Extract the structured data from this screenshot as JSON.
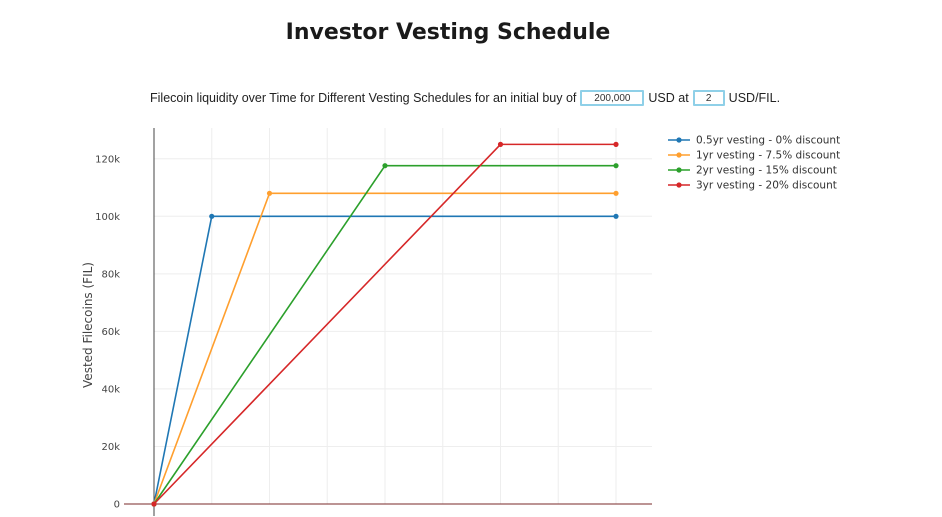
{
  "page": {
    "title": "Investor Vesting Schedule"
  },
  "controls": {
    "prefix_text": "Filecoin liquidity over Time for Different Vesting Schedules for an initial buy of",
    "amount_value": "200,000",
    "amount_unit": "USD at",
    "price_value": "2",
    "price_unit": "USD/FIL."
  },
  "chart_data": {
    "type": "line",
    "title": "",
    "xlabel": "",
    "ylabel": "Vested Filecoins (FIL)",
    "x_tick_count": 8,
    "x_range": [
      0,
      8
    ],
    "ylim": [
      0,
      130000
    ],
    "y_ticks": [
      0,
      20000,
      40000,
      60000,
      80000,
      100000,
      120000
    ],
    "y_tick_labels": [
      "0",
      "20k",
      "40k",
      "60k",
      "80k",
      "100k",
      "120k"
    ],
    "grid": true,
    "legend_position": "top-right",
    "series": [
      {
        "name": "0.5yr vesting - 0% discount",
        "color": "#1f77b4",
        "x": [
          0,
          1,
          8
        ],
        "y": [
          0,
          100000,
          100000
        ]
      },
      {
        "name": "1yr vesting - 7.5% discount",
        "color": "#ff9f2e",
        "x": [
          0,
          2,
          8
        ],
        "y": [
          0,
          108000,
          108000
        ]
      },
      {
        "name": "2yr vesting - 15% discount",
        "color": "#2ca02c",
        "x": [
          0,
          4,
          8
        ],
        "y": [
          0,
          117600,
          117600
        ]
      },
      {
        "name": "3yr vesting - 20% discount",
        "color": "#d62728",
        "x": [
          0,
          6,
          8
        ],
        "y": [
          0,
          125000,
          125000
        ]
      }
    ]
  }
}
